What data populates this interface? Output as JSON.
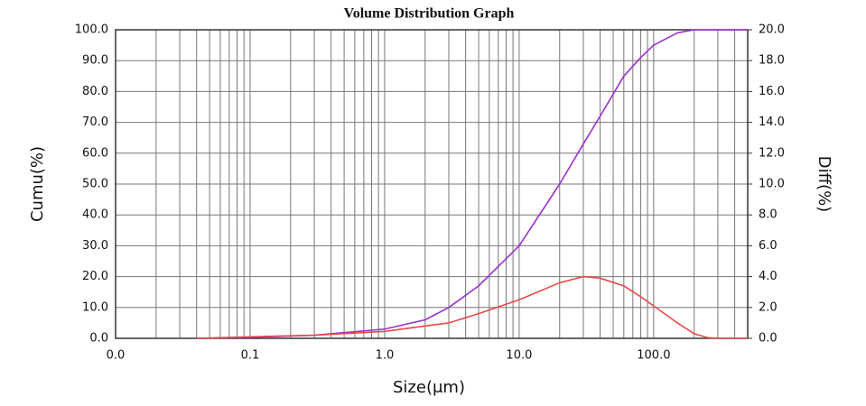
{
  "chart_data": {
    "type": "line",
    "title": "Volume Distribution Graph",
    "x_label": "Size(μm)",
    "y_label": "Cumu(%)",
    "y2_label": "Diff(%)",
    "x_log": true,
    "grid": true,
    "minor_grid": true,
    "x": [
      0.04,
      0.1,
      0.3,
      1,
      2,
      3,
      5,
      10,
      20,
      30,
      40,
      60,
      80,
      100,
      150,
      200,
      250,
      300,
      500
    ],
    "series": [
      {
        "name": "Cumu",
        "color": "#9b30d0",
        "values": [
          0,
          0.3,
          1,
          3,
          6,
          10,
          17,
          30,
          50,
          63,
          72,
          85,
          91,
          95,
          99,
          100,
          100,
          100,
          100
        ]
      },
      {
        "name": "Diff",
        "color": "#e84848",
        "axis": "y2",
        "values": [
          0,
          0.1,
          0.2,
          0.45,
          0.8,
          1.0,
          1.6,
          2.5,
          3.6,
          4.0,
          3.9,
          3.4,
          2.7,
          2.1,
          1.0,
          0.3,
          0.05,
          0,
          0
        ]
      }
    ],
    "xlim": [
      0.01,
      500
    ],
    "xticks": [
      {
        "value": 0.01,
        "label": "0.0"
      },
      0.1,
      {
        "value": 1,
        "label": "1.0"
      },
      {
        "value": 10,
        "label": "10.0"
      },
      {
        "value": 100,
        "label": "100.0"
      }
    ],
    "ylim": [
      0,
      100
    ],
    "yticks": [
      {
        "value": 0,
        "label": "0.0"
      },
      {
        "value": 10,
        "label": "10.0"
      },
      {
        "value": 20,
        "label": "20.0"
      },
      {
        "value": 30,
        "label": "30.0"
      },
      {
        "value": 40,
        "label": "40.0"
      },
      {
        "value": 50,
        "label": "50.0"
      },
      {
        "value": 60,
        "label": "60.0"
      },
      {
        "value": 70,
        "label": "70.0"
      },
      {
        "value": 80,
        "label": "80.0"
      },
      {
        "value": 90,
        "label": "90.0"
      },
      {
        "value": 100,
        "label": "100.0"
      }
    ],
    "y2lim": [
      0,
      20
    ],
    "y2ticks": [
      {
        "value": 0,
        "label": "0.0"
      },
      {
        "value": 2,
        "label": "2.0"
      },
      {
        "value": 4,
        "label": "4.0"
      },
      {
        "value": 6,
        "label": "6.0"
      },
      {
        "value": 8,
        "label": "8.0"
      },
      {
        "value": 10,
        "label": "10.0"
      },
      {
        "value": 12,
        "label": "12.0"
      },
      {
        "value": 14,
        "label": "14.0"
      },
      {
        "value": 16,
        "label": "16.0"
      },
      {
        "value": 18,
        "label": "18.0"
      },
      {
        "value": 20,
        "label": "20.0"
      }
    ]
  }
}
